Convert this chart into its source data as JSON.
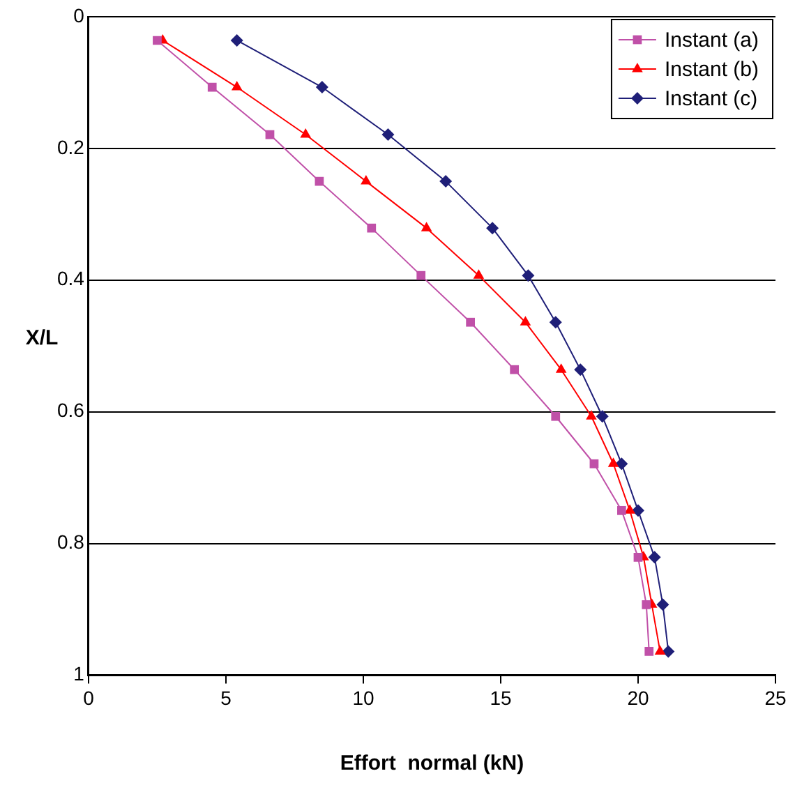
{
  "chart_data": {
    "type": "line",
    "xlabel": "Effort  normal (kN)",
    "ylabel": "X/L",
    "xlim": [
      0,
      25
    ],
    "xticks": [
      0,
      5,
      10,
      15,
      20,
      25
    ],
    "ylim": [
      1,
      0
    ],
    "yticks": [
      0,
      0.2,
      0.4,
      0.6,
      0.8,
      1
    ],
    "grid": "y",
    "legend": "top right",
    "line_style": "solid",
    "series": [
      {
        "name": "Instant (a)",
        "color": "#c050a8",
        "marker": "square",
        "x": [
          2.5,
          4.5,
          6.6,
          8.4,
          10.3,
          12.1,
          13.9,
          15.5,
          17.0,
          18.4,
          19.4,
          20.0,
          20.3,
          20.4
        ],
        "values": [
          0.036,
          0.107,
          0.179,
          0.25,
          0.321,
          0.393,
          0.464,
          0.536,
          0.607,
          0.679,
          0.75,
          0.821,
          0.893,
          0.964
        ]
      },
      {
        "name": "Instant (b)",
        "color": "#ff0000",
        "marker": "triangle",
        "x": [
          2.7,
          5.4,
          7.9,
          10.1,
          12.3,
          14.2,
          15.9,
          17.2,
          18.3,
          19.1,
          19.7,
          20.2,
          20.5,
          20.8
        ],
        "values": [
          0.036,
          0.107,
          0.179,
          0.25,
          0.321,
          0.393,
          0.464,
          0.536,
          0.607,
          0.679,
          0.75,
          0.821,
          0.893,
          0.964
        ]
      },
      {
        "name": "Instant (c)",
        "color": "#1f1f78",
        "marker": "diamond",
        "x": [
          5.4,
          8.5,
          10.9,
          13.0,
          14.7,
          16.0,
          17.0,
          17.9,
          18.7,
          19.4,
          20.0,
          20.6,
          20.9,
          21.1
        ],
        "values": [
          0.036,
          0.107,
          0.179,
          0.25,
          0.321,
          0.393,
          0.464,
          0.536,
          0.607,
          0.679,
          0.75,
          0.821,
          0.893,
          0.964
        ]
      }
    ]
  }
}
